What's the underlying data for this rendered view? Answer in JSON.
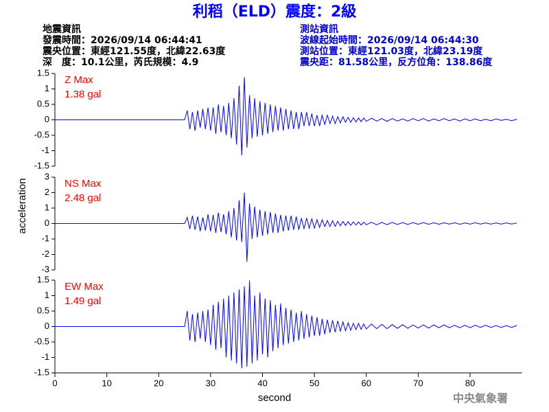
{
  "header": {
    "title": "利稻（ELD）震度：2級",
    "quake": [
      "地震資訊",
      "發震時間：2026/09/14 06:44:41",
      "震央位置：東經121.55度，北緯22.63度",
      "深　度：10.1公里，芮氏規模：4.9"
    ],
    "station": [
      "測站資訊",
      "波線起始時間：2026/09/14 06:44:30",
      "測站位置：東經121.03度，北緯23.19度",
      "震央距：81.58公里，反方位角：138.86度"
    ],
    "footer": "中央氣象署"
  },
  "chart_data": [
    {
      "type": "line",
      "annotations": [
        "Z Max",
        "1.38 gal"
      ],
      "y_label": null,
      "color": "#0000ff",
      "x": [
        0,
        25,
        25.5,
        26,
        26.5,
        27,
        27.5,
        28,
        28.5,
        29,
        29.5,
        30,
        30.5,
        31,
        31.5,
        32,
        32.5,
        33,
        33.5,
        34,
        34.5,
        35,
        35.5,
        36,
        36.5,
        37,
        37.5,
        38,
        38.5,
        39,
        39.5,
        40,
        40.5,
        41,
        41.5,
        42,
        42.5,
        43,
        43.5,
        44,
        44.5,
        45,
        45.5,
        46,
        46.5,
        47,
        47.5,
        48,
        48.5,
        49,
        49.5,
        50,
        50.5,
        51,
        51.5,
        52,
        52.5,
        53,
        53.5,
        54,
        54.5,
        55,
        55.5,
        56,
        56.5,
        57,
        57.5,
        58,
        58.5,
        59,
        59.5,
        60,
        61,
        62,
        63,
        64,
        65,
        66,
        67,
        68,
        69,
        70,
        71,
        72,
        73,
        74,
        75,
        76,
        77,
        78,
        79,
        80,
        81,
        82,
        83,
        84,
        85,
        86,
        87,
        88,
        89
      ],
      "values": [
        0,
        0,
        0.3,
        -0.3,
        0.25,
        -0.35,
        0.3,
        -0.25,
        0.35,
        -0.3,
        0.4,
        -0.35,
        0.4,
        -0.45,
        0.5,
        -0.4,
        0.45,
        -0.5,
        0.55,
        -0.6,
        0.7,
        -0.8,
        1.1,
        -1.15,
        1.38,
        -0.9,
        0.8,
        -0.6,
        0.7,
        -0.55,
        0.6,
        -0.5,
        0.55,
        -0.45,
        0.5,
        -0.4,
        0.45,
        -0.35,
        0.4,
        -0.35,
        0.35,
        -0.3,
        0.3,
        -0.3,
        0.25,
        -0.3,
        0.25,
        -0.2,
        0.25,
        -0.2,
        0.2,
        -0.2,
        0.15,
        -0.2,
        0.15,
        -0.15,
        0.15,
        -0.12,
        0.12,
        -0.12,
        0.1,
        -0.1,
        0.1,
        -0.08,
        0.08,
        -0.08,
        0.07,
        -0.07,
        0.06,
        -0.06,
        0.06,
        -0.05,
        0.05,
        -0.04,
        0.04,
        -0.05,
        0.04,
        -0.04,
        0.03,
        -0.04,
        0.04,
        -0.03,
        0.04,
        -0.04,
        0.03,
        -0.03,
        0.04,
        -0.03,
        0.03,
        -0.04,
        0.03,
        -0.03,
        0.03,
        -0.03,
        0.02,
        -0.03,
        0.03,
        -0.02,
        0.02,
        -0.03,
        0.02
      ],
      "xlim": [
        0,
        90
      ],
      "ylim": [
        -1.5,
        1.5
      ],
      "yticks": [
        -1.5,
        -1,
        -0.5,
        0,
        0.5,
        1,
        1.5
      ]
    },
    {
      "type": "line",
      "annotations": [
        "NS Max",
        "2.48 gal"
      ],
      "y_label": "acceleration",
      "color": "#0000ff",
      "x": [
        0,
        25,
        25.5,
        26,
        26.5,
        27,
        27.5,
        28,
        28.5,
        29,
        29.5,
        30,
        30.5,
        31,
        31.5,
        32,
        32.5,
        33,
        33.5,
        34,
        34.5,
        35,
        35.5,
        36,
        36.5,
        37,
        37.5,
        38,
        38.5,
        39,
        39.5,
        40,
        40.5,
        41,
        41.5,
        42,
        42.5,
        43,
        43.5,
        44,
        44.5,
        45,
        45.5,
        46,
        46.5,
        47,
        47.5,
        48,
        48.5,
        49,
        49.5,
        50,
        50.5,
        51,
        51.5,
        52,
        52.5,
        53,
        53.5,
        54,
        54.5,
        55,
        55.5,
        56,
        56.5,
        57,
        57.5,
        58,
        58.5,
        59,
        59.5,
        60,
        61,
        62,
        63,
        64,
        65,
        66,
        67,
        68,
        69,
        70,
        71,
        72,
        73,
        74,
        75,
        76,
        77,
        78,
        79,
        80,
        81,
        82,
        83,
        84,
        85,
        86,
        87,
        88,
        89
      ],
      "values": [
        0,
        0,
        0.4,
        -0.35,
        0.5,
        -0.4,
        0.45,
        -0.5,
        0.4,
        -0.45,
        0.6,
        -0.5,
        0.55,
        -0.6,
        0.7,
        -0.55,
        0.6,
        -0.7,
        0.8,
        -0.9,
        1,
        -1.1,
        1.5,
        -1.2,
        2,
        -2.48,
        1.3,
        -1,
        1.1,
        -0.9,
        0.9,
        -0.8,
        0.8,
        -0.7,
        0.75,
        -0.6,
        0.65,
        -0.6,
        0.55,
        -0.5,
        0.5,
        -0.45,
        0.5,
        -0.4,
        0.45,
        -0.4,
        0.35,
        -0.35,
        0.35,
        -0.3,
        0.3,
        -0.3,
        0.25,
        -0.25,
        0.25,
        -0.2,
        0.2,
        -0.2,
        0.18,
        -0.18,
        0.15,
        -0.15,
        0.14,
        -0.13,
        0.12,
        -0.12,
        0.11,
        -0.1,
        0.1,
        -0.1,
        0.09,
        -0.08,
        0.08,
        -0.08,
        0.07,
        -0.07,
        0.07,
        -0.06,
        0.06,
        -0.06,
        0.06,
        -0.05,
        0.06,
        -0.05,
        0.05,
        -0.05,
        0.05,
        -0.04,
        0.05,
        -0.05,
        0.04,
        -0.04,
        0.05,
        -0.04,
        0.04,
        -0.04,
        0.04,
        -0.04,
        0.04,
        -0.03,
        0.03
      ],
      "xlim": [
        0,
        90
      ],
      "ylim": [
        -3,
        3
      ],
      "yticks": [
        -3,
        -2,
        -1,
        0,
        1,
        2,
        3
      ]
    },
    {
      "type": "line",
      "annotations": [
        "EW Max",
        "1.49 gal"
      ],
      "x_label": "second",
      "color": "#0000ff",
      "x": [
        0,
        25,
        25.5,
        26,
        26.5,
        27,
        27.5,
        28,
        28.5,
        29,
        29.5,
        30,
        30.5,
        31,
        31.5,
        32,
        32.5,
        33,
        33.5,
        34,
        34.5,
        35,
        35.5,
        36,
        36.5,
        37,
        37.5,
        38,
        38.5,
        39,
        39.5,
        40,
        40.5,
        41,
        41.5,
        42,
        42.5,
        43,
        43.5,
        44,
        44.5,
        45,
        45.5,
        46,
        46.5,
        47,
        47.5,
        48,
        48.5,
        49,
        49.5,
        50,
        50.5,
        51,
        51.5,
        52,
        52.5,
        53,
        53.5,
        54,
        54.5,
        55,
        55.5,
        56,
        56.5,
        57,
        57.5,
        58,
        58.5,
        59,
        59.5,
        60,
        61,
        62,
        63,
        64,
        65,
        66,
        67,
        68,
        69,
        70,
        71,
        72,
        73,
        74,
        75,
        76,
        77,
        78,
        79,
        80,
        81,
        82,
        83,
        84,
        85,
        86,
        87,
        88,
        89
      ],
      "values": [
        0,
        0,
        0.5,
        -0.45,
        0.4,
        -0.5,
        0.45,
        -0.4,
        0.5,
        -0.5,
        0.55,
        -0.6,
        0.7,
        -0.75,
        0.8,
        -0.7,
        0.9,
        -1,
        1,
        -1.1,
        1.1,
        -1.2,
        1.2,
        -1.35,
        1.3,
        -1.3,
        1.49,
        -1.2,
        1,
        -1.1,
        1.1,
        -0.9,
        0.9,
        -1,
        0.85,
        -0.8,
        0.7,
        -0.7,
        0.75,
        -0.6,
        0.6,
        -0.55,
        0.55,
        -0.5,
        0.45,
        -0.45,
        0.5,
        -0.4,
        0.4,
        -0.35,
        0.35,
        -0.3,
        0.3,
        -0.3,
        0.25,
        -0.25,
        0.22,
        -0.2,
        0.2,
        -0.18,
        0.18,
        -0.15,
        0.15,
        -0.14,
        0.12,
        -0.12,
        0.1,
        -0.1,
        0.1,
        -0.09,
        0.08,
        -0.08,
        0.08,
        -0.07,
        0.07,
        -0.07,
        0.06,
        -0.06,
        0.06,
        -0.06,
        0.05,
        -0.05,
        0.05,
        -0.05,
        0.05,
        -0.04,
        0.05,
        -0.04,
        0.04,
        -0.04,
        0.04,
        -0.04,
        0.04,
        -0.03,
        0.04,
        -0.03,
        0.03,
        -0.03,
        0.03,
        -0.03,
        0.03
      ],
      "xlim": [
        0,
        90
      ],
      "xticks": [
        0,
        10,
        20,
        30,
        40,
        50,
        60,
        70,
        80
      ],
      "ylim": [
        -1.5,
        1.5
      ],
      "yticks": [
        -1.5,
        -1,
        -0.5,
        0,
        0.5,
        1,
        1.5
      ]
    }
  ]
}
